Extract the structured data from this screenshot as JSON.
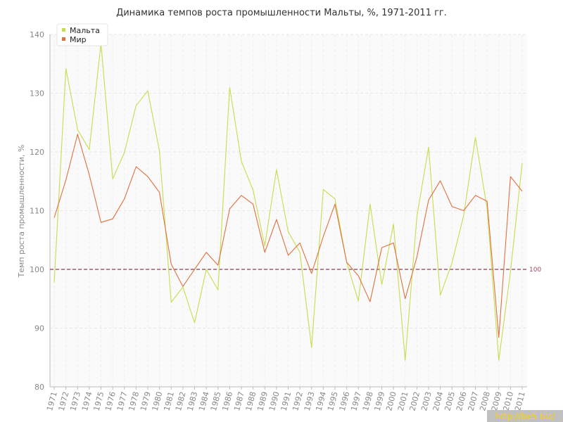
{
  "chart_data": {
    "type": "line",
    "title": "Динамика темпов роста промышленности Мальты, %, 1971-2011 гг.",
    "ylabel": "Темп роста промышленности, %",
    "xlabel": "",
    "ylim": [
      80,
      140
    ],
    "yticks": [
      80,
      90,
      100,
      110,
      120,
      130,
      140
    ],
    "grid": true,
    "legend_position": "top-left",
    "x": [
      "1971",
      "1972",
      "1973",
      "1974",
      "1975",
      "1976",
      "1977",
      "1978",
      "1979",
      "1980",
      "1981",
      "1982",
      "1983",
      "1984",
      "1985",
      "1986",
      "1987",
      "1988",
      "1989",
      "1990",
      "1991",
      "1992",
      "1993",
      "1994",
      "1995",
      "1996",
      "1997",
      "1998",
      "1999",
      "2000",
      "2001",
      "2002",
      "2003",
      "2004",
      "2005",
      "2006",
      "2007",
      "2008",
      "2009",
      "2010",
      "2011"
    ],
    "series": [
      {
        "name": "Мальта",
        "color": "#c8dc4e",
        "values": [
          97.8,
          134.2,
          123.8,
          120.4,
          138.5,
          115.4,
          119.9,
          127.9,
          130.4,
          120.1,
          94.4,
          97.0,
          90.9,
          100.0,
          96.5,
          131.0,
          118.4,
          113.5,
          104.0,
          117.0,
          106.4,
          102.9,
          86.7,
          113.6,
          112.0,
          101.2,
          94.6,
          111.1,
          97.4,
          107.7,
          84.5,
          109.0,
          120.8,
          95.6,
          101.1,
          109.2,
          122.5,
          110.4,
          84.5,
          99.6,
          118.1
        ]
      },
      {
        "name": "Мир",
        "color": "#e07040",
        "values": [
          108.8,
          115.2,
          123.0,
          116.1,
          108.0,
          108.6,
          112.0,
          117.5,
          115.8,
          113.1,
          100.9,
          97.1,
          100.0,
          102.9,
          100.7,
          110.3,
          112.6,
          111.1,
          102.9,
          108.5,
          102.4,
          104.5,
          99.3,
          105.6,
          111.1,
          101.2,
          98.9,
          94.5,
          103.7,
          104.5,
          95.0,
          102.1,
          111.8,
          115.1,
          110.7,
          110.0,
          112.6,
          111.6,
          88.4,
          115.8,
          113.3
        ]
      }
    ],
    "reference_line": {
      "value": 100,
      "label": "100",
      "color": "#8a3a55"
    }
  },
  "watermark": "http://be5.biz/"
}
